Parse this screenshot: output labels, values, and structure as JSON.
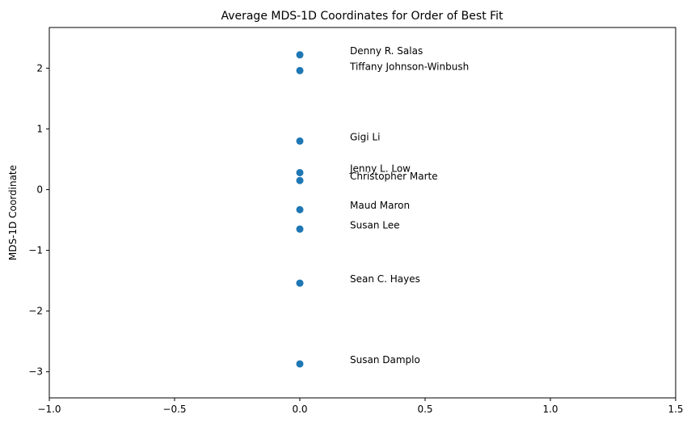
{
  "chart_data": {
    "type": "scatter",
    "title": "Average MDS-1D Coordinates for Order of Best Fit",
    "xlabel": "",
    "ylabel": "MDS-1D Coordinate",
    "xlim": [
      -1.0,
      1.5
    ],
    "ylim": [
      -3.43,
      2.67
    ],
    "grid": false,
    "x_ticks": [
      {
        "value": -1.0,
        "label": "−1.0"
      },
      {
        "value": -0.5,
        "label": "−0.5"
      },
      {
        "value": 0.0,
        "label": "0.0"
      },
      {
        "value": 0.5,
        "label": "0.5"
      },
      {
        "value": 1.0,
        "label": "1.0"
      },
      {
        "value": 1.5,
        "label": "1.5"
      }
    ],
    "y_ticks": [
      {
        "value": 2,
        "label": "2"
      },
      {
        "value": 1,
        "label": "1"
      },
      {
        "value": 0,
        "label": "0"
      },
      {
        "value": -1,
        "label": "−1"
      },
      {
        "value": -2,
        "label": "−2"
      },
      {
        "value": -3,
        "label": "−3"
      }
    ],
    "point_color": "#1f77b4",
    "label_x_offset": 0.2,
    "points": [
      {
        "label": "Denny R. Salas",
        "x": 0.0,
        "y": 2.22
      },
      {
        "label": "Tiffany Johnson-Winbush",
        "x": 0.0,
        "y": 1.96
      },
      {
        "label": "Gigi Li",
        "x": 0.0,
        "y": 0.8
      },
      {
        "label": "Jenny L. Low",
        "x": 0.0,
        "y": 0.28
      },
      {
        "label": "Christopher Marte",
        "x": 0.0,
        "y": 0.15
      },
      {
        "label": "Maud Maron",
        "x": 0.0,
        "y": -0.33
      },
      {
        "label": "Susan Lee",
        "x": 0.0,
        "y": -0.65
      },
      {
        "label": "Sean C. Hayes",
        "x": 0.0,
        "y": -1.54
      },
      {
        "label": "Susan Damplo",
        "x": 0.0,
        "y": -2.87
      }
    ]
  }
}
